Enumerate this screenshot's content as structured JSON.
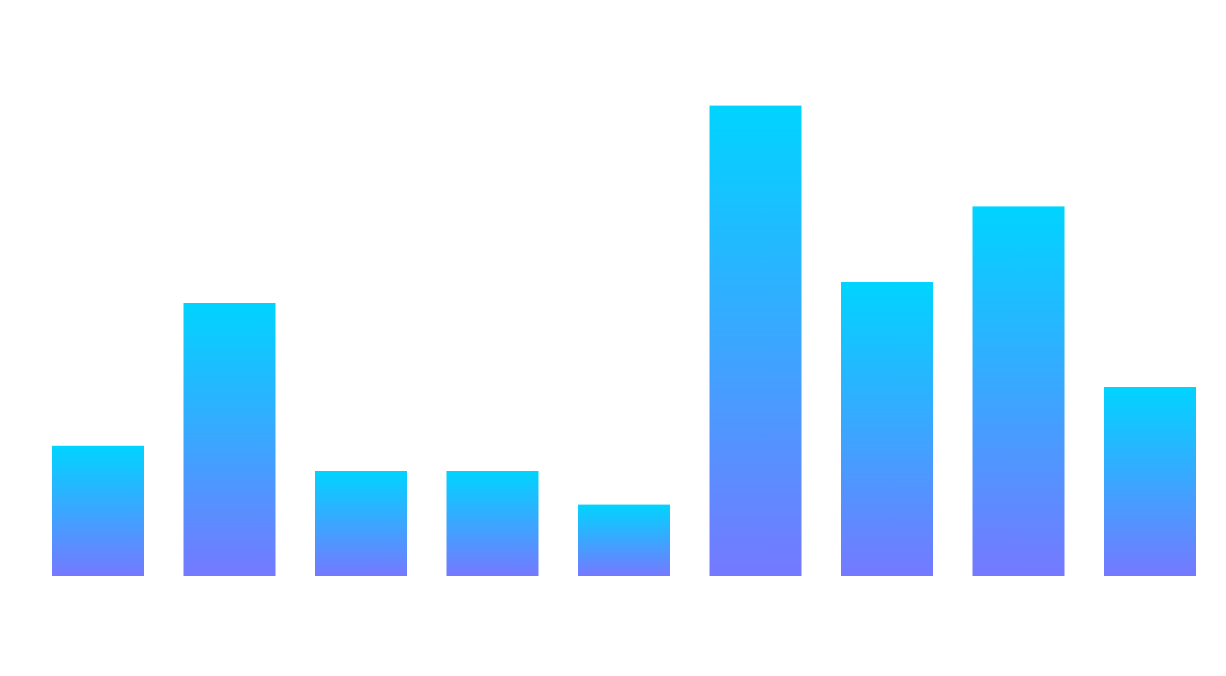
{
  "chart_data": {
    "type": "bar",
    "series": [
      {
        "values": [
          31,
          65,
          25,
          25,
          17,
          112,
          70,
          88,
          45
        ]
      }
    ],
    "ylim": [
      0,
      130
    ],
    "grid": false,
    "legend": "none",
    "colors": {
      "bar_top": "#00d4ff",
      "bar_bottom": "#7579ff",
      "background": "#ffffff"
    }
  }
}
